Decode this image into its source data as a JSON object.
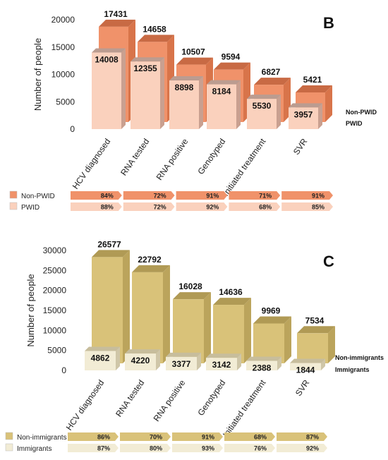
{
  "chart_data": [
    {
      "type": "bar",
      "panel_label": "B",
      "ylabel": "Number of people",
      "ylim": [
        0,
        20000
      ],
      "yticks": [
        "0",
        "5000",
        "10000",
        "15000",
        "20000"
      ],
      "categories": [
        "HCV diagnosed",
        "RNA tested",
        "RNA positive",
        "Genotyped",
        "Initiated treatment",
        "SVR"
      ],
      "series": [
        {
          "name": "Non-PWID",
          "values": [
            17431,
            14658,
            10507,
            9594,
            6827,
            5421
          ],
          "color": "#f0926a",
          "side": "#d8744a",
          "top": "#c86a44"
        },
        {
          "name": "PWID",
          "values": [
            14008,
            12355,
            8898,
            8184,
            5530,
            3957
          ],
          "color": "#fad1bd",
          "side": "#c9a090",
          "top": "#bb9c90"
        }
      ],
      "value_labels": [
        [
          "17431",
          "14658",
          "10507",
          "9594",
          "6827",
          "5421"
        ],
        [
          "14008",
          "12355",
          "8898",
          "8184",
          "5530",
          "3957"
        ]
      ],
      "retention": {
        "rows": [
          {
            "name": "Non-PWID",
            "values": [
              "84%",
              "72%",
              "91%",
              "71%",
              "91%"
            ],
            "color": "#f0926a"
          },
          {
            "name": "PWID",
            "values": [
              "88%",
              "72%",
              "92%",
              "68%",
              "85%"
            ],
            "color": "#fad1bd"
          }
        ]
      }
    },
    {
      "type": "bar",
      "panel_label": "C",
      "ylabel": "Number of people",
      "ylim": [
        0,
        30000
      ],
      "yticks": [
        "0",
        "5000",
        "10000",
        "15000",
        "20000",
        "25000",
        "30000"
      ],
      "categories": [
        "HCV diagnosed",
        "RNA tested",
        "RNA positive",
        "Genotyped",
        "Initiated treatment",
        "SVR"
      ],
      "series": [
        {
          "name": "Non-immigrants",
          "values": [
            26577,
            22792,
            16028,
            14636,
            9969,
            7534
          ],
          "color": "#d9c279",
          "side": "#bba45c",
          "top": "#b09a55"
        },
        {
          "name": "Immigrants",
          "values": [
            4862,
            4220,
            3377,
            3142,
            2388,
            1844
          ],
          "color": "#f2ecd5",
          "side": "#cfc6a8",
          "top": "#c7bd9c"
        }
      ],
      "value_labels": [
        [
          "26577",
          "22792",
          "16028",
          "14636",
          "9969",
          "7534"
        ],
        [
          "4862",
          "4220",
          "3377",
          "3142",
          "2388",
          "1844"
        ]
      ],
      "retention": {
        "rows": [
          {
            "name": "Non-immigrants",
            "values": [
              "86%",
              "70%",
              "91%",
              "68%",
              "87%"
            ],
            "color": "#d9c279"
          },
          {
            "name": "Immigrants",
            "values": [
              "87%",
              "80%",
              "93%",
              "76%",
              "92%"
            ],
            "color": "#f2ecd5"
          }
        ]
      }
    }
  ]
}
